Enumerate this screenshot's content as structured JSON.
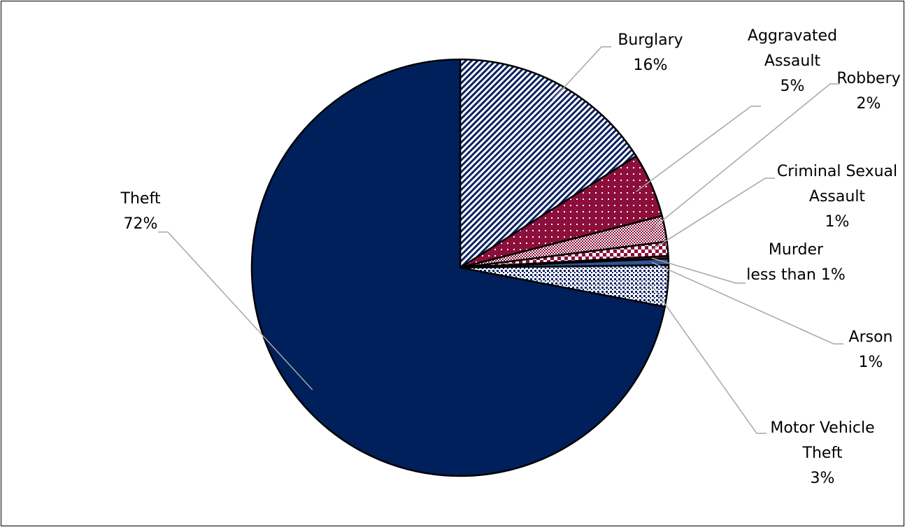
{
  "chart_data": {
    "type": "pie",
    "start_angle_deg": 0,
    "direction": "clockwise",
    "slices": [
      {
        "name": "Burglary",
        "value": 16,
        "label_lines": [
          "Burglary",
          "16%"
        ],
        "fill": "#0b2161",
        "pattern": "diagonal-stripes"
      },
      {
        "name": "Aggravated Assault",
        "value": 5,
        "label_lines": [
          "Aggravated",
          "Assault",
          "5%"
        ],
        "fill": "#8b0f3a",
        "pattern": "dots"
      },
      {
        "name": "Robbery",
        "value": 2,
        "label_lines": [
          "Robbery",
          "2%"
        ],
        "fill": "#8b0f3a",
        "pattern": "fine-checker"
      },
      {
        "name": "Criminal Sexual Assault",
        "value": 1.1,
        "label_lines": [
          "Criminal Sexual",
          "Assault",
          "1%"
        ],
        "fill": "#8b0f3a",
        "pattern": "large-checker"
      },
      {
        "name": "Murder",
        "value": 0.2,
        "label_lines": [
          "Murder",
          "less than 1%"
        ],
        "fill": "#8b0f3a",
        "pattern": "solid"
      },
      {
        "name": "Arson",
        "value": 0.5,
        "label_lines": [
          "Arson",
          "1%"
        ],
        "fill": "#2e5597",
        "pattern": "solid"
      },
      {
        "name": "Motor Vehicle Theft",
        "value": 3.2,
        "label_lines": [
          "Motor Vehicle",
          "Theft",
          "3%"
        ],
        "fill": "#0b2161",
        "pattern": "checker-dots"
      },
      {
        "name": "Theft",
        "value": 72,
        "label_lines": [
          "Theft",
          "72%"
        ],
        "fill": "#00205b",
        "pattern": "solid"
      }
    ]
  }
}
